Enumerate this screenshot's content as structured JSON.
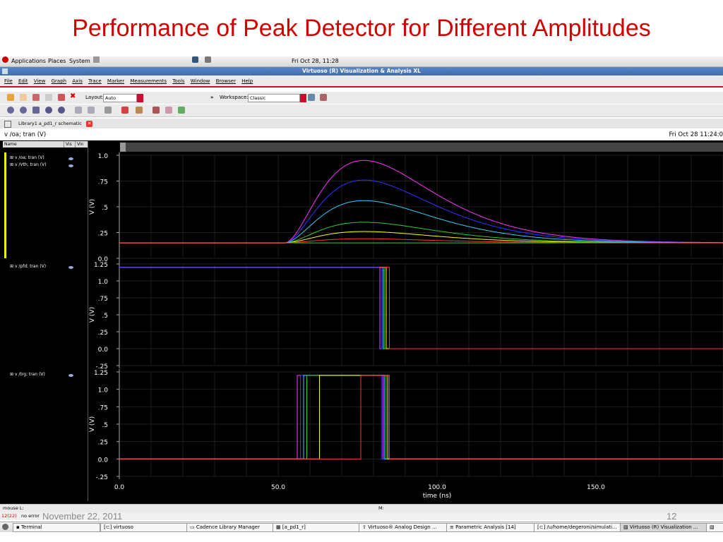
{
  "slide": {
    "title": "Performance of Peak Detector for Different Amplitudes",
    "footer_date": "November 22, 2011",
    "page_number": "12"
  },
  "gnome_panel": {
    "menus": [
      "Applications",
      "Places",
      "System"
    ],
    "clock": "Fri Oct 28, 11:28"
  },
  "window": {
    "title": "Virtuoso (R) Visualization & Analysis XL",
    "menus": [
      "File",
      "Edit",
      "View",
      "Graph",
      "Axis",
      "Trace",
      "Marker",
      "Measurements",
      "Tools",
      "Window",
      "Browser",
      "Help"
    ],
    "layout_label": "Layout:",
    "layout_value": "Auto",
    "workspace_label": "Workspace:",
    "workspace_value": "Classic",
    "tab_label": "Library1 a_pd1_r schematic"
  },
  "plot": {
    "header_title": "v /oa; tran (V)",
    "header_date": "Fri Oct 28 11:24:0",
    "panel_headers": {
      "name": "Name",
      "vis": "Vis",
      "vin": "Vin"
    },
    "panels": [
      {
        "traces": [
          "v /oa; tran (V)",
          "v /Vth; tran (V)"
        ],
        "ylabel": "V (V)",
        "yticks": [
          "1.0",
          ".75",
          ".5",
          ".25",
          "0.0"
        ]
      },
      {
        "traces": [
          "v /pfd; tran (V)"
        ],
        "ylabel": "V (V)",
        "yticks": [
          "1.25",
          "1.0",
          ".75",
          ".5",
          ".25",
          "0.0",
          "-.25"
        ]
      },
      {
        "traces": [
          "v /trg; tran (V)"
        ],
        "ylabel": "V (V)",
        "yticks": [
          "1.25",
          "1.0",
          ".75",
          ".5",
          ".25",
          "0.0",
          "-.25"
        ]
      }
    ],
    "xticks": [
      "0.0",
      "50.0",
      "100.0",
      "150.0"
    ],
    "xlabel": "time (ns)",
    "trace_colors": [
      "#ff33ff",
      "#3333ff",
      "#33ccff",
      "#33cc33",
      "#ffff00",
      "#ff3333",
      "#ff9900"
    ]
  },
  "chart_data": {
    "type": "line",
    "xlabel": "time (ns)",
    "xlim": [
      0,
      190
    ],
    "panels": [
      {
        "ylabel": "V (V)",
        "ylim": [
          0,
          1.0
        ],
        "series": [
          {
            "peak_time": 77,
            "peak": 0.95,
            "color": "#ff33ff"
          },
          {
            "peak_time": 77,
            "peak": 0.76,
            "color": "#3333ff"
          },
          {
            "peak_time": 77,
            "peak": 0.56,
            "color": "#33ccff"
          },
          {
            "peak_time": 77,
            "peak": 0.35,
            "color": "#33cc33"
          },
          {
            "peak_time": 77,
            "peak": 0.26,
            "color": "#ffff00"
          },
          {
            "peak_time": 77,
            "peak": 0.19,
            "color": "#ff3333"
          }
        ],
        "baseline": 0.15,
        "rise_start": 52
      },
      {
        "ylabel": "V (V)",
        "ylim": [
          -0.25,
          1.25
        ],
        "high": 1.2,
        "low": 0.0,
        "fall_times": [
          82,
          82.5,
          83,
          83.5,
          84,
          85
        ]
      },
      {
        "ylabel": "V (V)",
        "ylim": [
          -0.25,
          1.25
        ],
        "high": 1.2,
        "low": 0.0,
        "pulses": [
          [
            56,
            83
          ],
          [
            57,
            82.5
          ],
          [
            58,
            83.5
          ],
          [
            59,
            84
          ],
          [
            63,
            84.5
          ],
          [
            76,
            85
          ]
        ]
      }
    ]
  }
}
